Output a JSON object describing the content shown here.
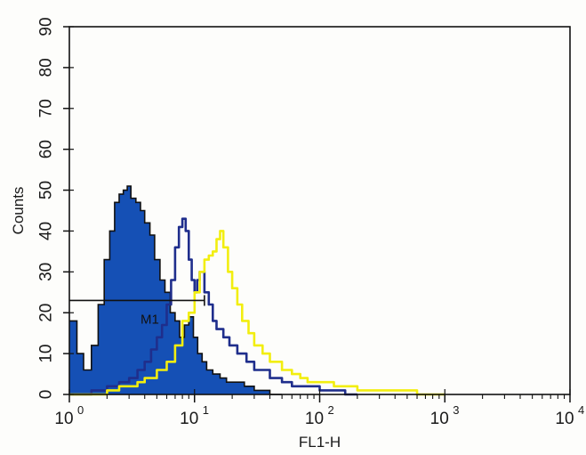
{
  "chart_data": {
    "type": "histogram",
    "xlabel": "FL1-H",
    "ylabel": "Counts",
    "xscale": "log",
    "xlim": [
      1,
      10000
    ],
    "ylim": [
      0,
      90
    ],
    "y_ticks": [
      0,
      10,
      20,
      30,
      40,
      50,
      60,
      70,
      80,
      90
    ],
    "x_ticks": [
      {
        "base": "10",
        "exp": "0"
      },
      {
        "base": "10",
        "exp": "1"
      },
      {
        "base": "10",
        "exp": "2"
      },
      {
        "base": "10",
        "exp": "3"
      },
      {
        "base": "10",
        "exp": "4"
      }
    ],
    "grid": false,
    "marker": {
      "label": "M1",
      "x_start": 1,
      "x_end": 12,
      "y": 23
    },
    "series": [
      {
        "color": "#1550b5",
        "fill": true,
        "x": [
          1.0,
          1.15,
          1.3,
          1.5,
          1.7,
          1.9,
          2.1,
          2.3,
          2.5,
          2.7,
          2.9,
          3.1,
          3.4,
          3.7,
          4.0,
          4.4,
          4.8,
          5.3,
          5.8,
          6.4,
          7.0,
          7.6,
          8.3,
          9.0,
          9.8,
          10.6,
          11.5,
          12.5,
          14,
          16,
          18,
          21,
          25,
          30,
          40,
          50
        ],
        "values": [
          18,
          10,
          6,
          12,
          22,
          33,
          40,
          47,
          49,
          50,
          51,
          48,
          47,
          45,
          42,
          39,
          33,
          28,
          25,
          20,
          18,
          14,
          17,
          19,
          14,
          10,
          8,
          6,
          5,
          4,
          3,
          3,
          2,
          1,
          0,
          0
        ]
      },
      {
        "color": "#1f2e8c",
        "fill": false,
        "x": [
          1.0,
          1.5,
          2.0,
          2.5,
          3.0,
          3.5,
          4.0,
          4.5,
          5.0,
          5.5,
          6.0,
          6.5,
          7.0,
          7.5,
          8.0,
          8.5,
          9.0,
          9.5,
          10.0,
          10.5,
          11.0,
          12,
          13,
          14,
          15,
          17,
          19,
          22,
          26,
          30,
          40,
          50,
          60,
          80,
          100,
          130,
          160,
          200
        ],
        "values": [
          0,
          1,
          2,
          3,
          4,
          6,
          8,
          11,
          14,
          17,
          22,
          28,
          36,
          41,
          43,
          40,
          33,
          28,
          25,
          28,
          30,
          25,
          22,
          18,
          16,
          14,
          12,
          10,
          8,
          6,
          4,
          3,
          2,
          2,
          1,
          1,
          0,
          0
        ]
      },
      {
        "color": "#f2ee0f",
        "fill": false,
        "x": [
          1.0,
          1.5,
          2.0,
          2.5,
          3.0,
          3.5,
          4.0,
          5.0,
          6.0,
          7.0,
          8.0,
          9.0,
          10.0,
          11.0,
          12.0,
          13.0,
          14.0,
          15.0,
          16.0,
          17.0,
          18.5,
          20,
          22,
          24,
          27,
          30,
          35,
          40,
          50,
          60,
          70,
          80,
          100,
          130,
          160,
          200,
          300,
          400,
          600,
          800,
          1000
        ],
        "values": [
          0,
          0,
          1,
          2,
          2,
          3,
          4,
          6,
          8,
          12,
          18,
          20,
          25,
          30,
          33,
          34,
          35,
          38,
          40,
          36,
          30,
          26,
          22,
          18,
          15,
          12,
          10,
          8,
          6,
          5,
          4,
          3,
          3,
          2,
          2,
          1,
          1,
          1,
          0,
          0,
          0
        ]
      }
    ]
  }
}
